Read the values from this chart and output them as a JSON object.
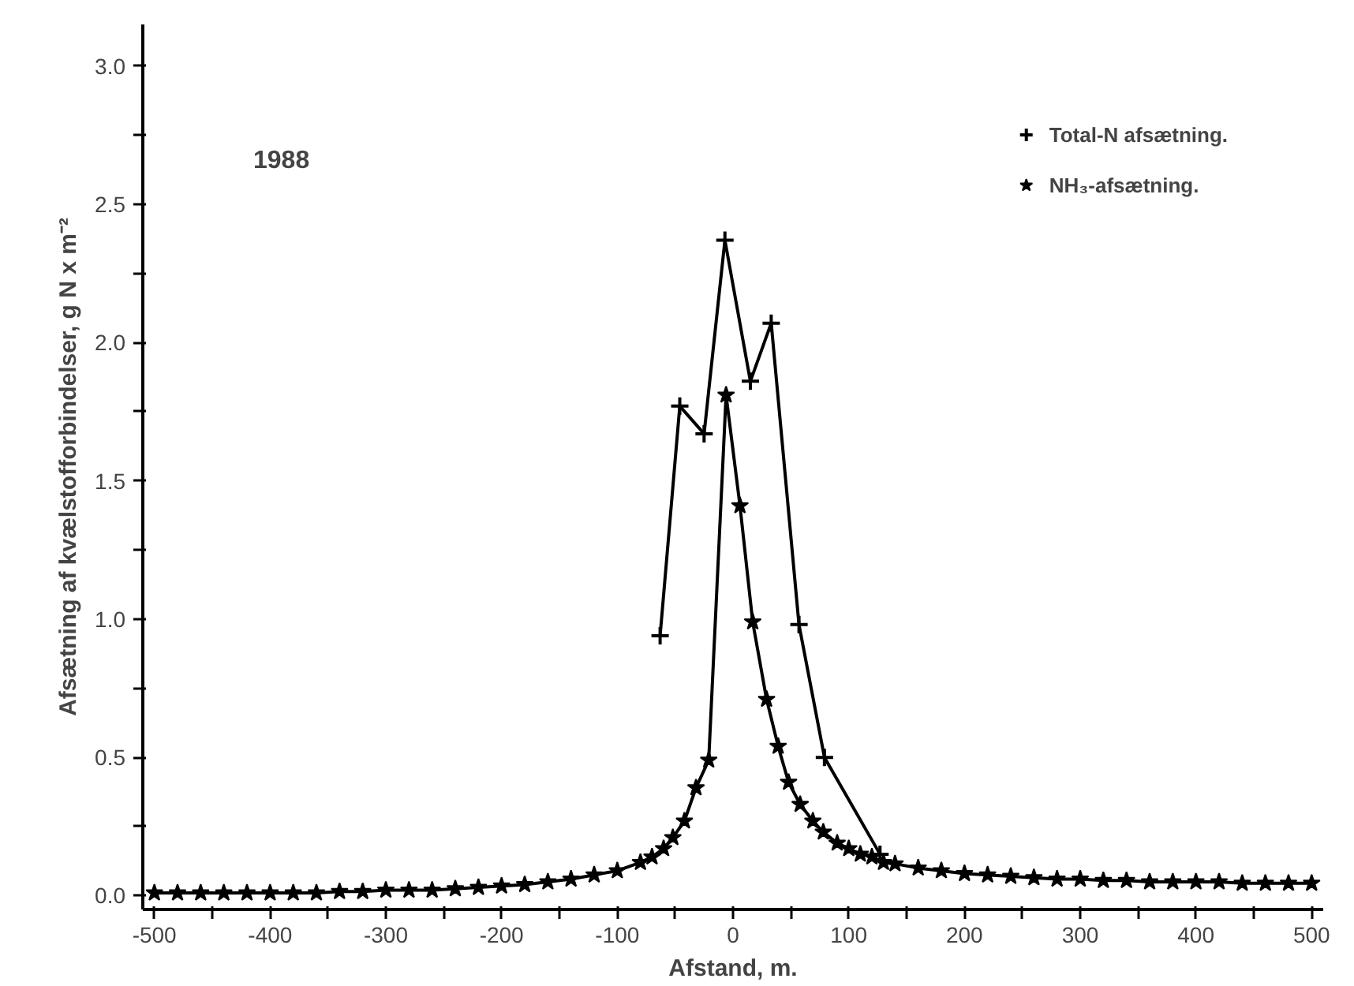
{
  "chart_data": {
    "type": "line",
    "xlabel": "Afstand, m.",
    "ylabel": "Afsætning af kvælstofforbindelser, g N x m⁻²",
    "annotations": [
      "1988"
    ],
    "xlim": [
      -510,
      510
    ],
    "ylim": [
      -0.05,
      3.15
    ],
    "xticks": [
      -500,
      {
        "value": -450,
        "label": null
      },
      -400,
      {
        "value": -350,
        "label": null
      },
      -300,
      {
        "value": -250,
        "label": null
      },
      -200,
      {
        "value": -150,
        "label": null
      },
      -100,
      {
        "value": -50,
        "label": null
      },
      0,
      {
        "value": 50,
        "label": null
      },
      100,
      {
        "value": 150,
        "label": null
      },
      200,
      {
        "value": 250,
        "label": null
      },
      300,
      {
        "value": 350,
        "label": null
      },
      400,
      {
        "value": 450,
        "label": null
      },
      500
    ],
    "yticks": [
      {
        "value": 0,
        "label": "0.0"
      },
      {
        "value": 0.25,
        "label": null
      },
      0.5,
      {
        "value": 0.75,
        "label": null
      },
      {
        "value": 1,
        "label": "1.0"
      },
      {
        "value": 1.25,
        "label": null
      },
      1.5,
      {
        "value": 1.75,
        "label": null
      },
      {
        "value": 2,
        "label": "2.0"
      },
      {
        "value": 2.25,
        "label": null
      },
      2.5,
      {
        "value": 2.75,
        "label": null
      },
      {
        "value": 3,
        "label": "3.0"
      }
    ],
    "grid": false,
    "legend": "top right",
    "line_style": "solid",
    "series": [
      {
        "name": "Total-N afsætning.",
        "color": "#000000",
        "marker": "cross",
        "x": [
          -63,
          -46,
          -25,
          -7,
          15,
          33,
          57,
          79,
          127
        ],
        "values": [
          0.94,
          1.77,
          1.67,
          2.37,
          1.86,
          2.07,
          0.98,
          0.5,
          0.15
        ]
      },
      {
        "name": "NH₃-afsætning.",
        "color": "#000000",
        "marker": "star",
        "x": [
          -500,
          -480,
          -460,
          -440,
          -420,
          -400,
          -380,
          -360,
          -340,
          -320,
          -300,
          -280,
          -260,
          -240,
          -220,
          -200,
          -180,
          -160,
          -140,
          -120,
          -100,
          -80,
          -70,
          -60,
          -52,
          -42,
          -32,
          -21,
          -6,
          6,
          17,
          29,
          39,
          48,
          58,
          69,
          78,
          90,
          100,
          110,
          120,
          130,
          140,
          160,
          180,
          200,
          220,
          240,
          260,
          280,
          300,
          320,
          340,
          360,
          380,
          400,
          420,
          440,
          460,
          480,
          500
        ],
        "values": [
          0.01,
          0.01,
          0.01,
          0.01,
          0.01,
          0.01,
          0.01,
          0.01,
          0.015,
          0.015,
          0.02,
          0.02,
          0.02,
          0.025,
          0.03,
          0.035,
          0.04,
          0.05,
          0.06,
          0.075,
          0.09,
          0.12,
          0.14,
          0.17,
          0.21,
          0.27,
          0.39,
          0.49,
          1.81,
          1.41,
          0.99,
          0.71,
          0.54,
          0.41,
          0.33,
          0.27,
          0.23,
          0.19,
          0.17,
          0.15,
          0.14,
          0.12,
          0.115,
          0.1,
          0.09,
          0.08,
          0.075,
          0.07,
          0.065,
          0.06,
          0.06,
          0.055,
          0.055,
          0.05,
          0.05,
          0.05,
          0.05,
          0.045,
          0.045,
          0.045,
          0.045
        ]
      }
    ]
  }
}
